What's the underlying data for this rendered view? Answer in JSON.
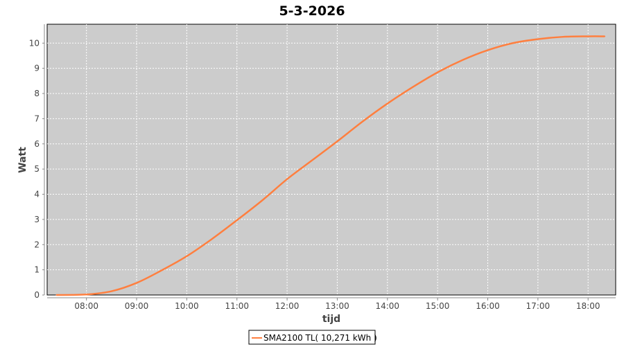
{
  "chart_data": {
    "type": "line",
    "title": "5-3-2026",
    "xlabel": "tijd",
    "ylabel": "Watt",
    "xticks": [
      "08:00",
      "09:00",
      "10:00",
      "11:00",
      "12:00",
      "13:00",
      "14:00",
      "15:00",
      "16:00",
      "17:00",
      "18:00"
    ],
    "yticks": [
      "0",
      "1",
      "2",
      "3",
      "4",
      "5",
      "6",
      "7",
      "8",
      "9",
      "10"
    ],
    "xlim": [
      "07:13",
      "18:33"
    ],
    "ylim": [
      0,
      10.75
    ],
    "grid": true,
    "legend_position": "bottom",
    "series": [
      {
        "name": "SMA2100 TL( 10,271 kWh )",
        "color": "#ff7f3f",
        "x": [
          "07:24",
          "08:00",
          "08:30",
          "09:00",
          "09:30",
          "10:00",
          "10:30",
          "11:00",
          "11:30",
          "12:00",
          "12:30",
          "13:00",
          "13:30",
          "14:00",
          "14:30",
          "15:00",
          "15:30",
          "16:00",
          "16:30",
          "17:00",
          "17:30",
          "18:00",
          "18:20"
        ],
        "y": [
          0,
          0.02,
          0.15,
          0.48,
          0.98,
          1.54,
          2.22,
          2.97,
          3.75,
          4.6,
          5.35,
          6.1,
          6.88,
          7.6,
          8.25,
          8.84,
          9.33,
          9.72,
          10.0,
          10.16,
          10.25,
          10.27,
          10.27
        ]
      }
    ]
  },
  "colors": {
    "plot_background": "#cccccc",
    "series": "#ff7f3f"
  }
}
